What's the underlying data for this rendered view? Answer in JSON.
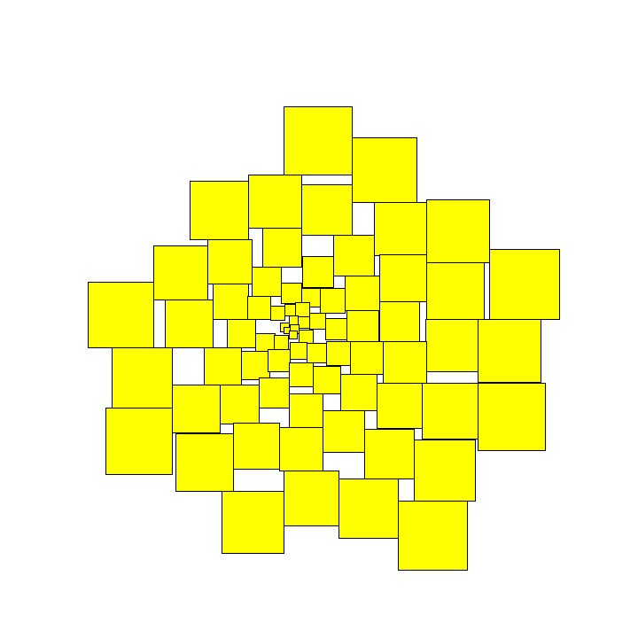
{
  "figure": {
    "background": "#ffffff",
    "square_fill": "#ffff00",
    "square_stroke": "#000000"
  }
}
